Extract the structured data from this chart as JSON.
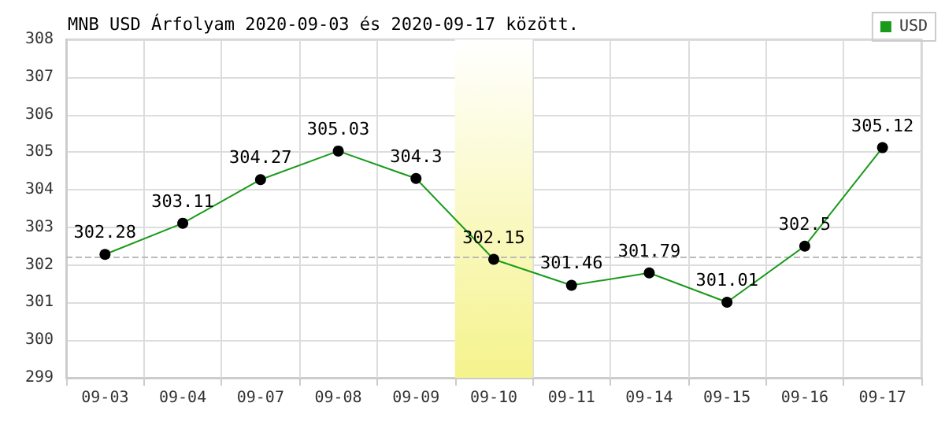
{
  "chart_data": {
    "type": "line",
    "title": "MNB USD Árfolyam 2020-09-03 és 2020-09-17 között.",
    "categories": [
      "09-03",
      "09-04",
      "09-07",
      "09-08",
      "09-09",
      "09-10",
      "09-11",
      "09-14",
      "09-15",
      "09-16",
      "09-17"
    ],
    "series": [
      {
        "name": "USD",
        "color": "#1a9a1a",
        "values": [
          302.28,
          303.11,
          304.27,
          305.03,
          304.3,
          302.15,
          301.46,
          301.79,
          301.01,
          302.5,
          305.12
        ]
      }
    ],
    "ylim": [
      299,
      308
    ],
    "yticks": [
      299,
      300,
      301,
      302,
      303,
      304,
      305,
      306,
      307,
      308
    ],
    "grid": true,
    "legend": "top right",
    "marker": "circle",
    "data_labels": true,
    "ref_lines": [
      {
        "axis": "y",
        "value": 302.2,
        "color": "#bbbbbb",
        "line_style": "dashed"
      }
    ],
    "bands": [
      {
        "axis": "x",
        "from": "09-10",
        "to": "09-10",
        "color": "#f5f38c"
      }
    ]
  }
}
